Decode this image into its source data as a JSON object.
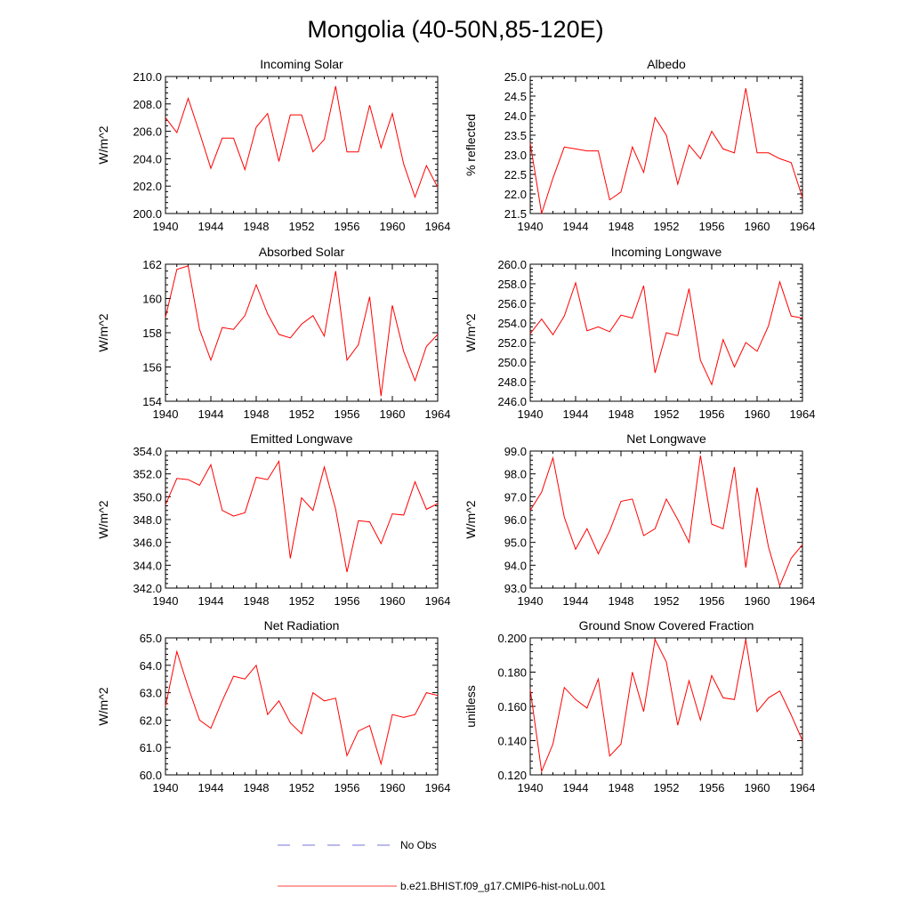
{
  "figure": {
    "title": "Mongolia (40-50N,85-120E)"
  },
  "legend": {
    "items": [
      {
        "label": "No Obs",
        "color": "#4a4ad0",
        "style": "dashed"
      },
      {
        "label": "b.e21.BHIST.f09_g17.CMIP6-hist-noLu.001",
        "color": "#ff0000",
        "style": "solid"
      }
    ]
  },
  "chart_data": [
    {
      "type": "line",
      "title": "Incoming Solar",
      "ylabel": "W/m^2",
      "xlim": [
        1940,
        1964
      ],
      "ylim": [
        200,
        210
      ],
      "xticks": [
        1940,
        1944,
        1948,
        1952,
        1956,
        1960,
        1964
      ],
      "yticks": [
        200,
        202,
        204,
        206,
        208,
        210
      ],
      "ytick_labels": [
        "200.0",
        "202.0",
        "204.0",
        "206.0",
        "208.0",
        "210.0"
      ],
      "series": [
        {
          "color": "#ff0000",
          "x": [
            1940,
            1941,
            1942,
            1943,
            1944,
            1945,
            1946,
            1947,
            1948,
            1949,
            1950,
            1951,
            1952,
            1953,
            1954,
            1955,
            1956,
            1957,
            1958,
            1959,
            1960,
            1961,
            1962,
            1963,
            1964
          ],
          "y": [
            207.0,
            205.9,
            208.4,
            205.9,
            203.3,
            205.5,
            205.5,
            203.2,
            206.3,
            207.3,
            203.8,
            207.2,
            207.2,
            204.5,
            205.4,
            209.3,
            204.5,
            204.5,
            207.9,
            204.8,
            207.3,
            203.6,
            201.2,
            203.5,
            201.9
          ]
        }
      ]
    },
    {
      "type": "line",
      "title": "Albedo",
      "ylabel": "% reflected",
      "xlim": [
        1940,
        1964
      ],
      "ylim": [
        21.5,
        25.0
      ],
      "xticks": [
        1940,
        1944,
        1948,
        1952,
        1956,
        1960,
        1964
      ],
      "yticks": [
        21.5,
        22.0,
        22.5,
        23.0,
        23.5,
        24.0,
        24.5,
        25.0
      ],
      "ytick_labels": [
        "21.5",
        "22.0",
        "22.5",
        "23.0",
        "23.5",
        "24.0",
        "24.5",
        "25.0"
      ],
      "series": [
        {
          "color": "#ff0000",
          "x": [
            1940,
            1941,
            1942,
            1943,
            1944,
            1945,
            1946,
            1947,
            1948,
            1949,
            1950,
            1951,
            1952,
            1953,
            1954,
            1955,
            1956,
            1957,
            1958,
            1959,
            1960,
            1961,
            1962,
            1963,
            1964
          ],
          "y": [
            23.3,
            21.5,
            22.4,
            23.2,
            23.15,
            23.1,
            23.1,
            21.85,
            22.05,
            23.2,
            22.55,
            23.95,
            23.5,
            22.25,
            23.25,
            22.9,
            23.6,
            23.15,
            23.05,
            24.7,
            23.05,
            23.05,
            22.9,
            22.8,
            21.9
          ]
        }
      ]
    },
    {
      "type": "line",
      "title": "Absorbed Solar",
      "ylabel": "W/m^2",
      "xlim": [
        1940,
        1964
      ],
      "ylim": [
        154,
        162
      ],
      "xticks": [
        1940,
        1944,
        1948,
        1952,
        1956,
        1960,
        1964
      ],
      "yticks": [
        154,
        156,
        158,
        160,
        162
      ],
      "ytick_labels": [
        "154",
        "156",
        "158",
        "160",
        "162"
      ],
      "series": [
        {
          "color": "#ff0000",
          "x": [
            1940,
            1941,
            1942,
            1943,
            1944,
            1945,
            1946,
            1947,
            1948,
            1949,
            1950,
            1951,
            1952,
            1953,
            1954,
            1955,
            1956,
            1957,
            1958,
            1959,
            1960,
            1961,
            1962,
            1963,
            1964
          ],
          "y": [
            158.9,
            161.7,
            161.9,
            158.2,
            156.4,
            158.3,
            158.2,
            159.0,
            160.8,
            159.1,
            157.9,
            157.7,
            158.5,
            159.0,
            157.8,
            161.6,
            156.4,
            157.3,
            160.1,
            154.3,
            159.6,
            156.9,
            155.2,
            157.2,
            157.9
          ]
        }
      ]
    },
    {
      "type": "line",
      "title": "Incoming Longwave",
      "ylabel": "W/m^2",
      "xlim": [
        1940,
        1964
      ],
      "ylim": [
        246,
        260
      ],
      "xticks": [
        1940,
        1944,
        1948,
        1952,
        1956,
        1960,
        1964
      ],
      "yticks": [
        246,
        248,
        250,
        252,
        254,
        256,
        258,
        260
      ],
      "ytick_labels": [
        "246.0",
        "248.0",
        "250.0",
        "252.0",
        "254.0",
        "256.0",
        "258.0",
        "260.0"
      ],
      "series": [
        {
          "color": "#ff0000",
          "x": [
            1940,
            1941,
            1942,
            1943,
            1944,
            1945,
            1946,
            1947,
            1948,
            1949,
            1950,
            1951,
            1952,
            1953,
            1954,
            1955,
            1956,
            1957,
            1958,
            1959,
            1960,
            1961,
            1962,
            1963,
            1964
          ],
          "y": [
            252.9,
            254.4,
            252.8,
            254.7,
            258.1,
            253.2,
            253.6,
            253.1,
            254.8,
            254.5,
            257.8,
            248.9,
            253.0,
            252.7,
            257.5,
            250.2,
            247.7,
            252.3,
            249.5,
            252.0,
            251.1,
            253.7,
            258.2,
            254.7,
            254.5
          ]
        }
      ]
    },
    {
      "type": "line",
      "title": "Emitted Longwave",
      "ylabel": "W/m^2",
      "xlim": [
        1940,
        1964
      ],
      "ylim": [
        342,
        354
      ],
      "xticks": [
        1940,
        1944,
        1948,
        1952,
        1956,
        1960,
        1964
      ],
      "yticks": [
        342,
        344,
        346,
        348,
        350,
        352,
        354
      ],
      "ytick_labels": [
        "342.0",
        "344.0",
        "346.0",
        "348.0",
        "350.0",
        "352.0",
        "354.0"
      ],
      "series": [
        {
          "color": "#ff0000",
          "x": [
            1940,
            1941,
            1942,
            1943,
            1944,
            1945,
            1946,
            1947,
            1948,
            1949,
            1950,
            1951,
            1952,
            1953,
            1954,
            1955,
            1956,
            1957,
            1958,
            1959,
            1960,
            1961,
            1962,
            1963,
            1964
          ],
          "y": [
            349.3,
            351.6,
            351.5,
            351.0,
            352.8,
            348.8,
            348.3,
            348.6,
            351.7,
            351.5,
            353.1,
            344.6,
            349.9,
            348.8,
            352.6,
            348.9,
            343.4,
            347.9,
            347.8,
            345.9,
            348.5,
            348.4,
            351.3,
            348.9,
            349.4
          ]
        }
      ]
    },
    {
      "type": "line",
      "title": "Net Longwave",
      "ylabel": "W/m^2",
      "xlim": [
        1940,
        1964
      ],
      "ylim": [
        93,
        99
      ],
      "xticks": [
        1940,
        1944,
        1948,
        1952,
        1956,
        1960,
        1964
      ],
      "yticks": [
        93,
        94,
        95,
        96,
        97,
        98,
        99
      ],
      "ytick_labels": [
        "93.0",
        "94.0",
        "95.0",
        "96.0",
        "97.0",
        "98.0",
        "99.0"
      ],
      "series": [
        {
          "color": "#ff0000",
          "x": [
            1940,
            1941,
            1942,
            1943,
            1944,
            1945,
            1946,
            1947,
            1948,
            1949,
            1950,
            1951,
            1952,
            1953,
            1954,
            1955,
            1956,
            1957,
            1958,
            1959,
            1960,
            1961,
            1962,
            1963,
            1964
          ],
          "y": [
            96.4,
            97.2,
            98.7,
            96.1,
            94.7,
            95.6,
            94.5,
            95.5,
            96.8,
            96.9,
            95.3,
            95.6,
            96.9,
            96.0,
            95.0,
            98.8,
            95.8,
            95.6,
            98.3,
            93.9,
            97.4,
            94.8,
            93.1,
            94.3,
            94.9
          ]
        }
      ]
    },
    {
      "type": "line",
      "title": "Net Radiation",
      "ylabel": "W/m^2",
      "xlim": [
        1940,
        1964
      ],
      "ylim": [
        60,
        65
      ],
      "xticks": [
        1940,
        1944,
        1948,
        1952,
        1956,
        1960,
        1964
      ],
      "yticks": [
        60,
        61,
        62,
        63,
        64,
        65
      ],
      "ytick_labels": [
        "60.0",
        "61.0",
        "62.0",
        "63.0",
        "64.0",
        "65.0"
      ],
      "series": [
        {
          "color": "#ff0000",
          "x": [
            1940,
            1941,
            1942,
            1943,
            1944,
            1945,
            1946,
            1947,
            1948,
            1949,
            1950,
            1951,
            1952,
            1953,
            1954,
            1955,
            1956,
            1957,
            1958,
            1959,
            1960,
            1961,
            1962,
            1963,
            1964
          ],
          "y": [
            62.5,
            64.5,
            63.2,
            62.0,
            61.7,
            62.7,
            63.6,
            63.5,
            64.0,
            62.2,
            62.7,
            61.9,
            61.5,
            63.0,
            62.7,
            62.8,
            60.7,
            61.6,
            61.8,
            60.4,
            62.2,
            62.1,
            62.2,
            63.0,
            62.9
          ]
        }
      ]
    },
    {
      "type": "line",
      "title": "Ground Snow Covered Fraction",
      "ylabel": "unitless",
      "xlim": [
        1940,
        1964
      ],
      "ylim": [
        0.12,
        0.2
      ],
      "xticks": [
        1940,
        1944,
        1948,
        1952,
        1956,
        1960,
        1964
      ],
      "yticks": [
        0.12,
        0.14,
        0.16,
        0.18,
        0.2
      ],
      "ytick_labels": [
        "0.120",
        "0.140",
        "0.160",
        "0.180",
        "0.200"
      ],
      "series": [
        {
          "color": "#ff0000",
          "x": [
            1940,
            1941,
            1942,
            1943,
            1944,
            1945,
            1946,
            1947,
            1948,
            1949,
            1950,
            1951,
            1952,
            1953,
            1954,
            1955,
            1956,
            1957,
            1958,
            1959,
            1960,
            1961,
            1962,
            1963,
            1964
          ],
          "y": [
            0.17,
            0.122,
            0.138,
            0.171,
            0.164,
            0.159,
            0.176,
            0.131,
            0.138,
            0.18,
            0.157,
            0.199,
            0.186,
            0.149,
            0.175,
            0.152,
            0.178,
            0.165,
            0.164,
            0.199,
            0.157,
            0.165,
            0.169,
            0.155,
            0.14
          ]
        }
      ]
    }
  ]
}
